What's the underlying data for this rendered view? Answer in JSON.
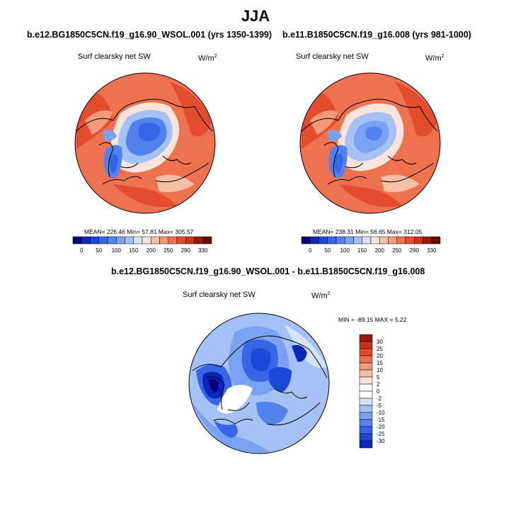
{
  "page_title": "JJA",
  "chart_data": [
    {
      "type": "heatmap",
      "projection": "north polar stereographic",
      "title": "b.e12.BG1850C5CN.f19_g16.90_WSOL.001 (yrs 1350-1399)",
      "field_label": "Surf clearsky net SW",
      "units": "W/m",
      "units_exponent": "2",
      "stats": "MEAN= 226.46  Min=  57.81  Max= 305.57",
      "mean": 226.46,
      "min": 57.81,
      "max": 305.57,
      "colorbar": {
        "orientation": "horizontal",
        "levels": [
          0,
          25,
          50,
          75,
          100,
          125,
          150,
          175,
          200,
          225,
          250,
          270,
          290,
          310,
          330
        ],
        "tick_labels": [
          "0",
          "50",
          "100",
          "150",
          "200",
          "250",
          "290",
          "330"
        ],
        "colors": [
          "#00007a",
          "#0b26b8",
          "#1c48d8",
          "#3566e8",
          "#5282ee",
          "#7aa2f3",
          "#a5c2f7",
          "#d4e2fb",
          "#fbe4d9",
          "#f7c0a6",
          "#f39a78",
          "#ee7150",
          "#e34d2e",
          "#c8341b",
          "#96190b",
          "#6a0a04"
        ]
      }
    },
    {
      "type": "heatmap",
      "projection": "north polar stereographic",
      "title": "b.e11.B1850C5CN.f19_g16.008 (yrs 981-1000)",
      "field_label": "Surf clearsky net SW",
      "units": "W/m",
      "units_exponent": "2",
      "stats": "MEAN= 238.31  Min=  56.65  Max= 312.05",
      "mean": 238.31,
      "min": 56.65,
      "max": 312.05,
      "colorbar": {
        "orientation": "horizontal",
        "levels": [
          0,
          25,
          50,
          75,
          100,
          125,
          150,
          175,
          200,
          225,
          250,
          270,
          290,
          310,
          330
        ],
        "tick_labels": [
          "0",
          "50",
          "100",
          "150",
          "200",
          "250",
          "290",
          "330"
        ],
        "colors": [
          "#00007a",
          "#0b26b8",
          "#1c48d8",
          "#3566e8",
          "#5282ee",
          "#7aa2f3",
          "#a5c2f7",
          "#d4e2fb",
          "#fbe4d9",
          "#f7c0a6",
          "#f39a78",
          "#ee7150",
          "#e34d2e",
          "#c8341b",
          "#96190b",
          "#6a0a04"
        ]
      }
    },
    {
      "type": "heatmap",
      "projection": "north polar stereographic",
      "title": "b.e12.BG1850C5CN.f19_g16.90_WSOL.001 - b.e11.B1850C5CN.f19_g16.008",
      "field_label": "Surf clearsky net SW",
      "units": "W/m",
      "units_exponent": "2",
      "stats": "MIN = -89.15 MAX =   5.22",
      "min": -89.15,
      "max": 5.22,
      "colorbar": {
        "orientation": "vertical",
        "tick_labels": [
          "30",
          "25",
          "20",
          "15",
          "10",
          "5",
          "2",
          "0",
          "-2",
          "-5",
          "-10",
          "-15",
          "-20",
          "-25",
          "-30"
        ],
        "colors": [
          "#96190b",
          "#c8341b",
          "#e34d2e",
          "#ee7150",
          "#f39a78",
          "#f7c0a6",
          "#fbe4d9",
          "#ffffff",
          "#ffffff",
          "#d4e2fb",
          "#a5c2f7",
          "#7aa2f3",
          "#5282ee",
          "#3566e8",
          "#1c48d8",
          "#0b26b8"
        ]
      }
    }
  ]
}
